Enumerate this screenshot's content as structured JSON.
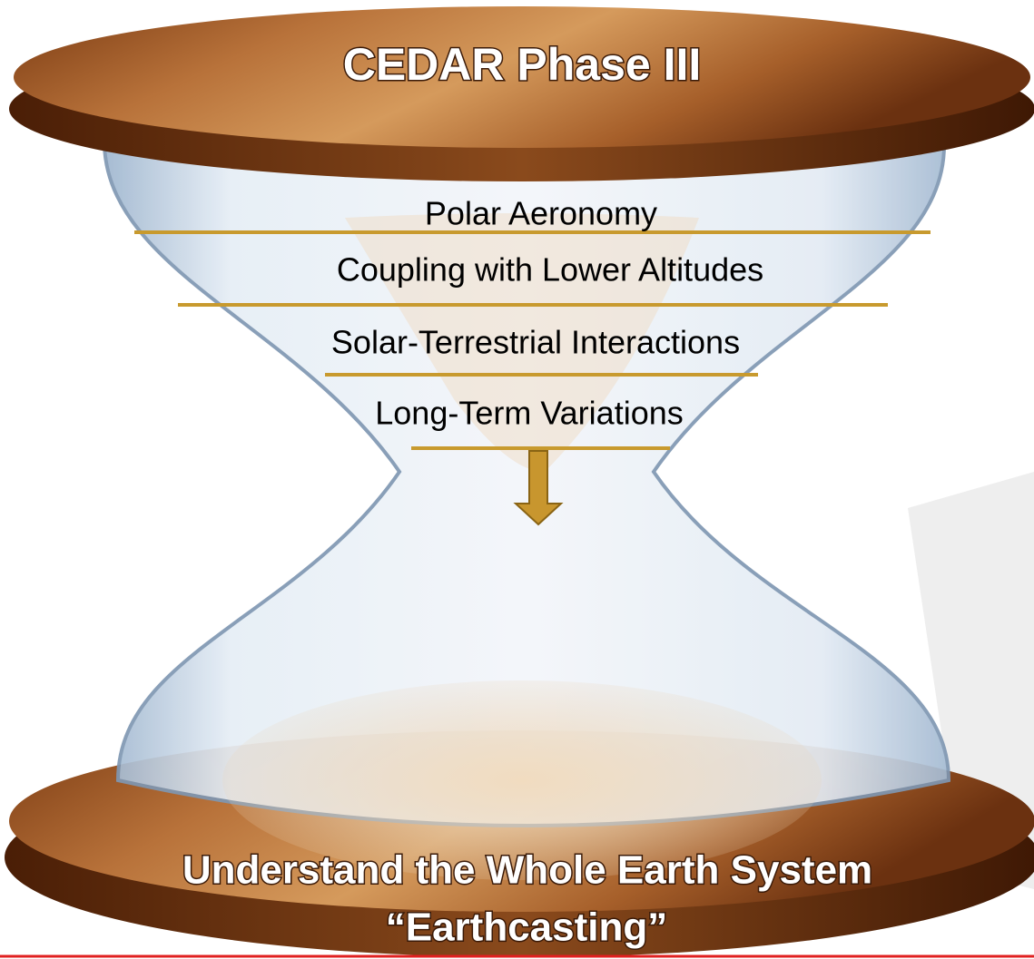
{
  "header": {
    "title": "CEDAR Phase III"
  },
  "layers": [
    "Polar Aeronomy",
    "Coupling with Lower Altitudes",
    "Solar-Terrestrial Interactions",
    "Long-Term Variations"
  ],
  "footer": {
    "line1": "Understand the Whole Earth System",
    "line2": "“Earthcasting”"
  }
}
